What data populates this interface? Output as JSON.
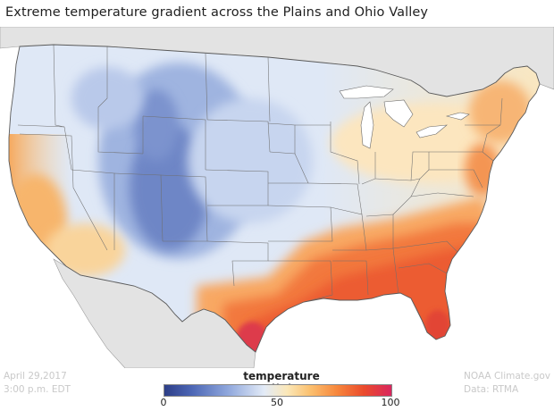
{
  "title": "Extreme temperature gradient across the Plains and Ohio Valley",
  "date": "April 29,2017",
  "time": "3:00 p.m. EDT",
  "credit": "NOAA Climate.gov",
  "data_source": "Data: RTMA",
  "legend": {
    "title": "temperature (°F)",
    "ticks": [
      "0",
      "50",
      "100"
    ],
    "min": 0,
    "max": 100,
    "colors": [
      "#2d3e87",
      "#4c66b5",
      "#8fa7dc",
      "#e3ebf7",
      "#fbe8b9",
      "#fbc170",
      "#f7873c",
      "#ea4a2c",
      "#d9265e"
    ]
  },
  "map_colors": {
    "water": "#ffffff",
    "land_outside": "#e3e3e3",
    "borders": "#6a6a6a"
  }
}
